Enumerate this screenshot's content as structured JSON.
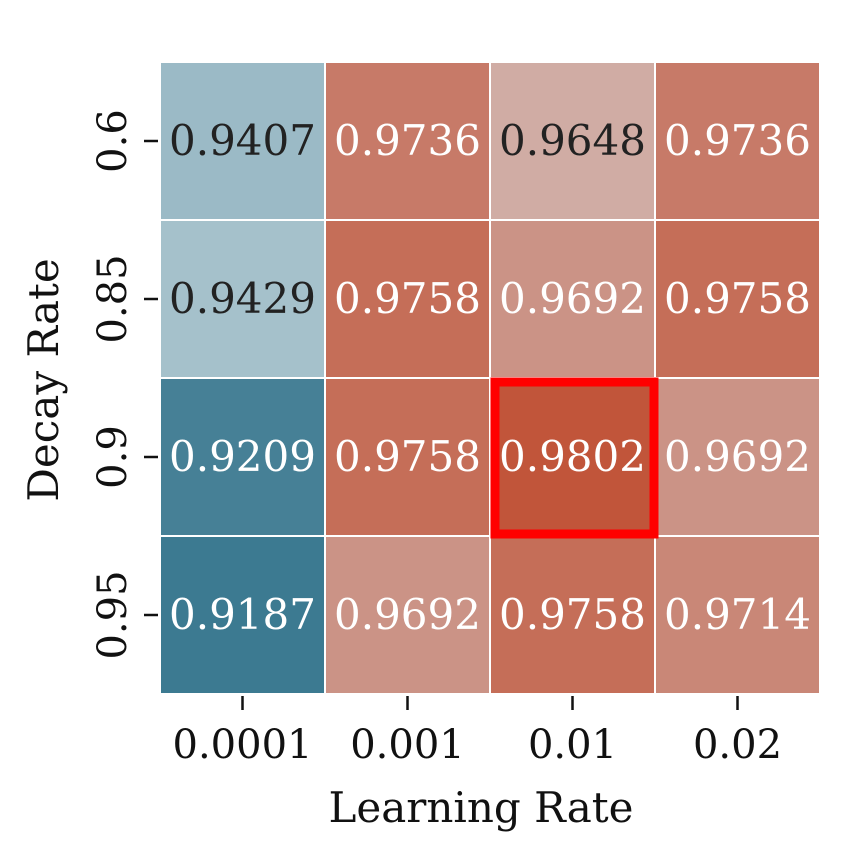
{
  "chart_data": {
    "type": "heatmap",
    "title": "",
    "xlabel": "Learning Rate",
    "ylabel": "Decay Rate",
    "x_categories": [
      "0.0001",
      "0.001",
      "0.01",
      "0.02"
    ],
    "y_categories": [
      "0.6",
      "0.85",
      "0.9",
      "0.95"
    ],
    "values": [
      [
        0.9407,
        0.9736,
        0.9648,
        0.9736
      ],
      [
        0.9429,
        0.9758,
        0.9692,
        0.9758
      ],
      [
        0.9209,
        0.9758,
        0.9802,
        0.9692
      ],
      [
        0.9187,
        0.9692,
        0.9758,
        0.9714
      ]
    ],
    "cell_labels": [
      [
        "0.9407",
        "0.9736",
        "0.9648",
        "0.9736"
      ],
      [
        "0.9429",
        "0.9758",
        "0.9692",
        "0.9758"
      ],
      [
        "0.9209",
        "0.9758",
        "0.9802",
        "0.9692"
      ],
      [
        "0.9187",
        "0.9692",
        "0.9758",
        "0.9714"
      ]
    ],
    "highlight": {
      "row": 2,
      "col": 2,
      "color": "#ff0000"
    },
    "colormap": {
      "low": "#3c7a91",
      "mid": "#d9e4e8",
      "high": "#c1553a",
      "vmin": 0.9187,
      "vcenter": 0.955,
      "vmax": 0.9802
    },
    "grid": false,
    "legend": "none"
  }
}
